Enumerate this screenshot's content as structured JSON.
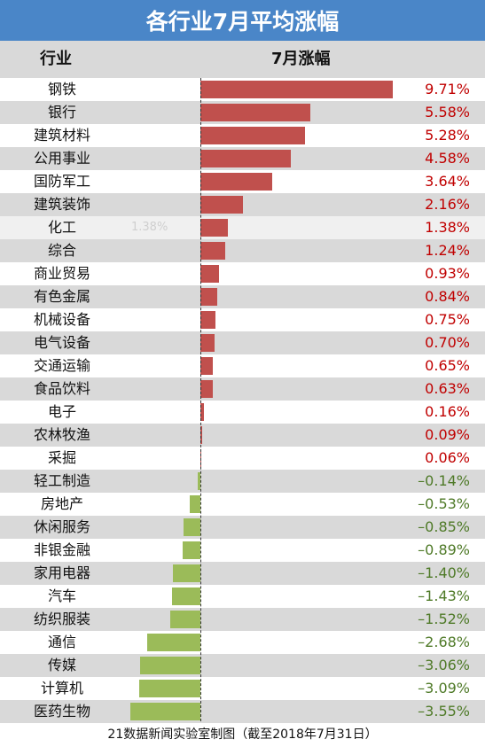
{
  "title": "各行业7月平均涨幅",
  "header": {
    "col_industry": "行业",
    "col_change": "7月涨幅"
  },
  "footer": "21数据新闻实验室制图（截至2018年7月31日）",
  "colors": {
    "title_bg": "#4a86c8",
    "positive_bar": "#c0504d",
    "negative_bar": "#9bbb59",
    "positive_text": "#c00000",
    "negative_text": "#4f7a28"
  },
  "chart_data": {
    "type": "bar",
    "orientation": "horizontal",
    "title": "各行业7月平均涨幅",
    "xlabel": "7月涨幅",
    "ylabel": "行业",
    "unit": "%",
    "categories": [
      "钢铁",
      "银行",
      "建筑材料",
      "公用事业",
      "国防军工",
      "建筑装饰",
      "化工",
      "综合",
      "商业贸易",
      "有色金属",
      "机械设备",
      "电气设备",
      "交通运输",
      "食品饮料",
      "电子",
      "农林牧渔",
      "采掘",
      "轻工制造",
      "房地产",
      "休闲服务",
      "非银金融",
      "家用电器",
      "汽车",
      "纺织服装",
      "通信",
      "传媒",
      "计算机",
      "医药生物"
    ],
    "values": [
      9.71,
      5.58,
      5.28,
      4.58,
      3.64,
      2.16,
      1.38,
      1.24,
      0.93,
      0.84,
      0.75,
      0.7,
      0.65,
      0.63,
      0.16,
      0.09,
      0.06,
      -0.14,
      -0.53,
      -0.85,
      -0.89,
      -1.4,
      -1.43,
      -1.52,
      -2.68,
      -3.06,
      -3.09,
      -3.55
    ],
    "labels": [
      "9.71%",
      "5.58%",
      "5.28%",
      "4.58%",
      "3.64%",
      "2.16%",
      "1.38%",
      "1.24%",
      "0.93%",
      "0.84%",
      "0.75%",
      "0.70%",
      "0.65%",
      "0.63%",
      "0.16%",
      "0.09%",
      "0.06%",
      "–0.14%",
      "–0.53%",
      "–0.85%",
      "–0.89%",
      "–1.40%",
      "–1.43%",
      "–1.52%",
      "–2.68%",
      "–3.06%",
      "–3.09%",
      "–3.55%"
    ],
    "hover_label": {
      "category": "化工",
      "text": "1.38%"
    }
  }
}
